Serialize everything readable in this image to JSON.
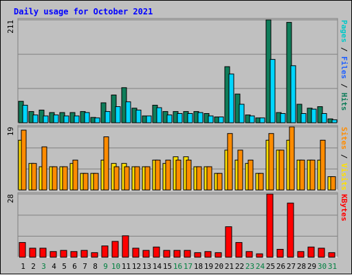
{
  "title": "Daily usage for October 2021",
  "colors": {
    "background": "#c0c0c0",
    "title": "#0000ff",
    "grid": "#808080",
    "pages": "#0f7d5a",
    "files": "#00d6ff",
    "hits": "#0f7d5a",
    "visits": "#ffe000",
    "sites": "#ff8c00",
    "kbytes": "#ff0000",
    "weekday_label": "#000000",
    "weekend_label": "#008040"
  },
  "chart_data": [
    {
      "type": "bar",
      "panel": "hits-files-pages",
      "ymax_label": "211",
      "ylim": [
        0,
        211
      ],
      "side_labels": [
        {
          "text": "Pages",
          "color": "#00c8c8"
        },
        {
          "text": " / ",
          "color": "#000000"
        },
        {
          "text": "Files",
          "color": "#2060ff"
        },
        {
          "text": " / ",
          "color": "#000000"
        },
        {
          "text": "Hits",
          "color": "#0f7d5a"
        }
      ],
      "series": [
        {
          "name": "Hits",
          "color": "#0f7d5a",
          "values": [
            44,
            23,
            26,
            21,
            21,
            21,
            23,
            11,
            41,
            57,
            72,
            30,
            14,
            36,
            23,
            23,
            23,
            23,
            19,
            12,
            115,
            59,
            16,
            10,
            211,
            21,
            206,
            38,
            30,
            33,
            8
          ]
        },
        {
          "name": "Files",
          "color": "#00d6ff",
          "values": [
            36,
            16,
            14,
            16,
            14,
            14,
            21,
            10,
            23,
            33,
            43,
            26,
            14,
            31,
            16,
            19,
            19,
            21,
            14,
            12,
            100,
            38,
            14,
            10,
            130,
            19,
            117,
            19,
            28,
            19,
            6
          ]
        }
      ]
    },
    {
      "type": "bar",
      "panel": "sites-visits",
      "ymax_label": "19",
      "ylim": [
        0,
        19
      ],
      "side_labels": [
        {
          "text": "Sites",
          "color": "#ff8c00"
        },
        {
          "text": " / ",
          "color": "#000000"
        },
        {
          "text": "Visits",
          "color": "#ffe000"
        }
      ],
      "series": [
        {
          "name": "Visits",
          "color": "#ffe000",
          "values": [
            15,
            8,
            7,
            7,
            7,
            8,
            5,
            5,
            9,
            8,
            8,
            7,
            7,
            9,
            8,
            10,
            10,
            7,
            7,
            5,
            12,
            9,
            8,
            5,
            15,
            12,
            15,
            9,
            9,
            9,
            4
          ]
        },
        {
          "name": "Sites",
          "color": "#ff8c00",
          "values": [
            18,
            8,
            13,
            7,
            7,
            9,
            5,
            5,
            16,
            7,
            7,
            7,
            7,
            9,
            9,
            9,
            9,
            7,
            7,
            5,
            17,
            12,
            9,
            5,
            17,
            12,
            19,
            9,
            9,
            15,
            4
          ]
        }
      ]
    },
    {
      "type": "bar",
      "panel": "kbytes",
      "ymax_label": "28",
      "ylim": [
        0,
        28
      ],
      "side_labels": [
        {
          "text": "KBytes",
          "color": "#ff0000"
        }
      ],
      "series": [
        {
          "name": "KBytes",
          "color": "#ff0000",
          "values": [
            6.5,
            4.0,
            4.0,
            2.5,
            3.0,
            2.5,
            3.0,
            2.0,
            5.0,
            7.0,
            9.5,
            4.0,
            3.0,
            4.5,
            3.0,
            3.0,
            3.0,
            2.0,
            2.5,
            2.0,
            13.5,
            6.5,
            2.5,
            1.5,
            28,
            3.5,
            24,
            2.5,
            4.5,
            4.0,
            2.0
          ]
        }
      ]
    }
  ],
  "x_labels": [
    {
      "text": "1",
      "weekend": false
    },
    {
      "text": "2",
      "weekend": false
    },
    {
      "text": "3",
      "weekend": true
    },
    {
      "text": "4",
      "weekend": false
    },
    {
      "text": "5",
      "weekend": false
    },
    {
      "text": "6",
      "weekend": false
    },
    {
      "text": "7",
      "weekend": false
    },
    {
      "text": "8",
      "weekend": false
    },
    {
      "text": "9",
      "weekend": true
    },
    {
      "text": "10",
      "weekend": true
    },
    {
      "text": "11",
      "weekend": false
    },
    {
      "text": "12",
      "weekend": false
    },
    {
      "text": "13",
      "weekend": false
    },
    {
      "text": "14",
      "weekend": false
    },
    {
      "text": "15",
      "weekend": false
    },
    {
      "text": "16",
      "weekend": true
    },
    {
      "text": "17",
      "weekend": true
    },
    {
      "text": "18",
      "weekend": false
    },
    {
      "text": "19",
      "weekend": false
    },
    {
      "text": "20",
      "weekend": false
    },
    {
      "text": "21",
      "weekend": false
    },
    {
      "text": "22",
      "weekend": false
    },
    {
      "text": "23",
      "weekend": true
    },
    {
      "text": "24",
      "weekend": true
    },
    {
      "text": "25",
      "weekend": false
    },
    {
      "text": "26",
      "weekend": false
    },
    {
      "text": "27",
      "weekend": false
    },
    {
      "text": "28",
      "weekend": false
    },
    {
      "text": "29",
      "weekend": false
    },
    {
      "text": "30",
      "weekend": true
    },
    {
      "text": "31",
      "weekend": true
    }
  ]
}
